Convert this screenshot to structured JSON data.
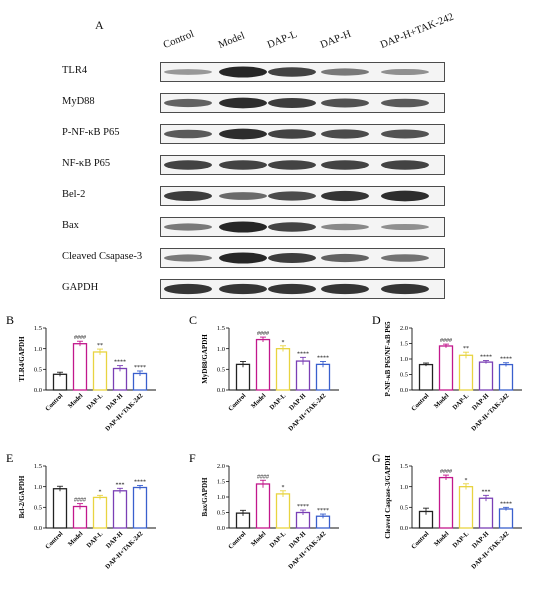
{
  "figure": {
    "panel_A_letter": "A",
    "lanes": [
      "Control",
      "Model",
      "DAP-L",
      "DAP-H",
      "DAP-H+TAK-242"
    ],
    "blots": [
      {
        "label": "TLR4",
        "intensities": [
          0.25,
          1.0,
          0.8,
          0.45,
          0.3
        ]
      },
      {
        "label": "MyD88",
        "intensities": [
          0.6,
          0.95,
          0.85,
          0.7,
          0.65
        ]
      },
      {
        "label": "P-NF-κB P65",
        "intensities": [
          0.65,
          0.95,
          0.8,
          0.75,
          0.7
        ]
      },
      {
        "label": "NF-κB P65",
        "intensities": [
          0.8,
          0.8,
          0.8,
          0.8,
          0.8
        ]
      },
      {
        "label": "Bel-2",
        "intensities": [
          0.85,
          0.55,
          0.75,
          0.9,
          0.95
        ]
      },
      {
        "label": "Bax",
        "intensities": [
          0.45,
          1.0,
          0.8,
          0.35,
          0.3
        ]
      },
      {
        "label": "Cleaved Csapase-3",
        "intensities": [
          0.45,
          1.0,
          0.85,
          0.6,
          0.5
        ]
      },
      {
        "label": "GAPDH",
        "intensities": [
          0.9,
          0.9,
          0.9,
          0.9,
          0.9
        ]
      }
    ]
  },
  "colors": {
    "Control": "#222222",
    "Model": "#c2188c",
    "DAP-L": "#e8d440",
    "DAP-H": "#7a3fb5",
    "DAP-H+TAK-242": "#3a5fcd",
    "band": "#1a1a1a"
  },
  "chart_data": [
    {
      "panel": "B",
      "type": "bar",
      "categories": [
        "Control",
        "Model",
        "DAP-L",
        "DAP-H",
        "DAP-H+TAK-242"
      ],
      "values": [
        0.38,
        1.12,
        0.92,
        0.52,
        0.4
      ],
      "errors": [
        0.05,
        0.06,
        0.07,
        0.07,
        0.06
      ],
      "significance": [
        "",
        "####",
        "**",
        "****",
        "****"
      ],
      "ylabel": "TLR4/GAPDH",
      "ylim": [
        0,
        1.5
      ],
      "yticks": [
        "0.0",
        "0.5",
        "1.0",
        "1.5"
      ]
    },
    {
      "panel": "C",
      "type": "bar",
      "categories": [
        "Control",
        "Model",
        "DAP-L",
        "DAP-H",
        "DAP-H+TAK-242"
      ],
      "values": [
        0.62,
        1.22,
        1.0,
        0.7,
        0.62
      ],
      "errors": [
        0.07,
        0.06,
        0.07,
        0.09,
        0.07
      ],
      "significance": [
        "",
        "####",
        "*",
        "****",
        "****"
      ],
      "ylabel": "MyD88/GAPDH",
      "ylim": [
        0,
        1.5
      ],
      "yticks": [
        "0.0",
        "0.5",
        "1.0",
        "1.5"
      ]
    },
    {
      "panel": "D",
      "type": "bar",
      "categories": [
        "Control",
        "Model",
        "DAP-L",
        "DAP-H",
        "DAP-H+TAK-242"
      ],
      "values": [
        0.82,
        1.42,
        1.12,
        0.9,
        0.82
      ],
      "errors": [
        0.05,
        0.06,
        0.1,
        0.05,
        0.06
      ],
      "significance": [
        "",
        "####",
        "**",
        "****",
        "****"
      ],
      "ylabel": "P-NF-κB P65/NF-κB P65",
      "ylim": [
        0,
        2.0
      ],
      "yticks": [
        "0.0",
        "0.5",
        "1.0",
        "1.5",
        "2.0"
      ]
    },
    {
      "panel": "E",
      "type": "bar",
      "categories": [
        "Control",
        "Model",
        "DAP-L",
        "DAP-H",
        "DAP-H+TAK-242"
      ],
      "values": [
        0.95,
        0.52,
        0.74,
        0.9,
        0.98
      ],
      "errors": [
        0.06,
        0.07,
        0.05,
        0.06,
        0.05
      ],
      "significance": [
        "",
        "####",
        "*",
        "***",
        "****"
      ],
      "ylabel": "Bcl-2/GAPDH",
      "ylim": [
        0,
        1.5
      ],
      "yticks": [
        "0.0",
        "0.5",
        "1.0",
        "1.5"
      ]
    },
    {
      "panel": "F",
      "type": "bar",
      "categories": [
        "Control",
        "Model",
        "DAP-L",
        "DAP-H",
        "DAP-H+TAK-242"
      ],
      "values": [
        0.48,
        1.42,
        1.1,
        0.5,
        0.38
      ],
      "errors": [
        0.09,
        0.12,
        0.1,
        0.08,
        0.07
      ],
      "significance": [
        "",
        "####",
        "*",
        "****",
        "****"
      ],
      "ylabel": "Bax/GAPDH",
      "ylim": [
        0,
        2.0
      ],
      "yticks": [
        "0.0",
        "0.5",
        "1.0",
        "1.5",
        "2.0"
      ]
    },
    {
      "panel": "G",
      "type": "bar",
      "categories": [
        "Control",
        "Model",
        "DAP-L",
        "DAP-H",
        "DAP-H+TAK-242"
      ],
      "values": [
        0.4,
        1.22,
        1.0,
        0.72,
        0.46
      ],
      "errors": [
        0.08,
        0.06,
        0.07,
        0.07,
        0.04
      ],
      "significance": [
        "",
        "####",
        "*",
        "***",
        "****"
      ],
      "ylabel": "Cleaved Caspase-3/GAPDH",
      "ylim": [
        0,
        1.5
      ],
      "yticks": [
        "0.0",
        "0.5",
        "1.0",
        "1.5"
      ]
    }
  ]
}
